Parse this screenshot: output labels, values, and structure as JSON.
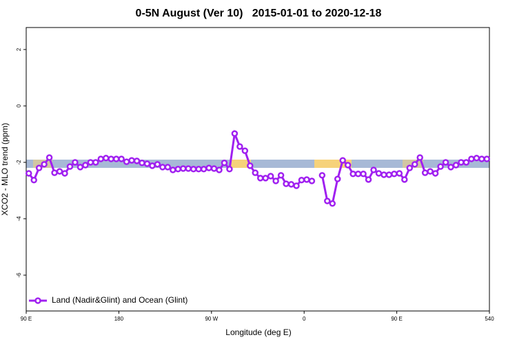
{
  "chart_data": {
    "type": "line",
    "title": "0-5N August (Ver 10)   2015-01-01 to 2020-12-18",
    "x_label": "Longitude (deg E)",
    "y_label": "XCO2 - MLO trend (ppm)",
    "xlim": [
      90,
      540
    ],
    "xticks": [
      {
        "value": 90,
        "label": "90 E"
      },
      180,
      {
        "value": 270,
        "label": "90 W"
      },
      {
        "value": 360,
        "label": "0"
      },
      {
        "value": 450,
        "label": "90 E"
      },
      540
    ],
    "ylim": [
      2.78,
      -7.27
    ],
    "yticks": [
      2,
      0,
      -2,
      -4,
      -6
    ],
    "legend": "bottom-left",
    "grid": false,
    "x": [
      92.5,
      97.5,
      102.5,
      107.5,
      112.5,
      117.5,
      122.5,
      127.5,
      132.5,
      137.5,
      142.5,
      147.5,
      152.5,
      157.5,
      162.5,
      167.5,
      172.5,
      177.5,
      182.5,
      187.5,
      192.5,
      197.5,
      202.5,
      207.5,
      212.5,
      217.5,
      222.5,
      227.5,
      232.5,
      237.5,
      242.5,
      247.5,
      252.5,
      257.5,
      262.5,
      267.5,
      272.5,
      277.5,
      282.5,
      287.5,
      292.5,
      297.5,
      302.5,
      307.5,
      312.5,
      317.5,
      322.5,
      327.5,
      332.5,
      337.5,
      342.5,
      347.5,
      352.5,
      357.5,
      362.5,
      367.5,
      372.5,
      377.5,
      382.5,
      387.5,
      392.5,
      397.5,
      402.5,
      407.5,
      412.5,
      417.5,
      422.5,
      427.5,
      432.5,
      437.5,
      442.5,
      447.5,
      452.5,
      457.5,
      462.5,
      467.5,
      472.5,
      477.5,
      482.5,
      487.5,
      492.5,
      497.5,
      502.5,
      507.5,
      512.5,
      517.5,
      522.5,
      527.5,
      532.5,
      537.5
    ],
    "series": [
      {
        "name": "Land (Nadir&Glint) and Ocean (Glint)",
        "color": "#a020f0",
        "values": [
          -2.39,
          -2.63,
          -2.2,
          -2.07,
          -1.83,
          -2.37,
          -2.32,
          -2.39,
          -2.15,
          -2.0,
          -2.17,
          -2.1,
          -2.0,
          -2.0,
          -1.88,
          -1.85,
          -1.88,
          -1.88,
          -1.88,
          -1.98,
          -1.93,
          -1.95,
          -2.02,
          -2.05,
          -2.12,
          -2.07,
          -2.17,
          -2.17,
          -2.27,
          -2.24,
          -2.22,
          -2.22,
          -2.24,
          -2.24,
          -2.24,
          -2.2,
          -2.22,
          -2.27,
          -2.02,
          -2.24,
          -0.98,
          -1.44,
          -1.59,
          -2.12,
          -2.37,
          -2.56,
          -2.56,
          -2.49,
          -2.66,
          -2.46,
          -2.76,
          -2.78,
          -2.83,
          -2.63,
          -2.61,
          -2.66,
          null,
          -2.46,
          -3.37,
          -3.46,
          -2.59,
          -1.93,
          -2.1,
          -2.41,
          -2.41,
          -2.41,
          -2.61,
          -2.27,
          -2.39,
          -2.44,
          -2.44,
          -2.41,
          -2.39,
          -2.61,
          -2.2,
          -2.07,
          -1.83,
          -2.37,
          -2.32,
          -2.39,
          -2.15,
          -2.0,
          -2.17,
          -2.1,
          -2.0,
          -2.0,
          -1.88,
          -1.85,
          -1.88,
          -1.88
        ]
      }
    ]
  }
}
